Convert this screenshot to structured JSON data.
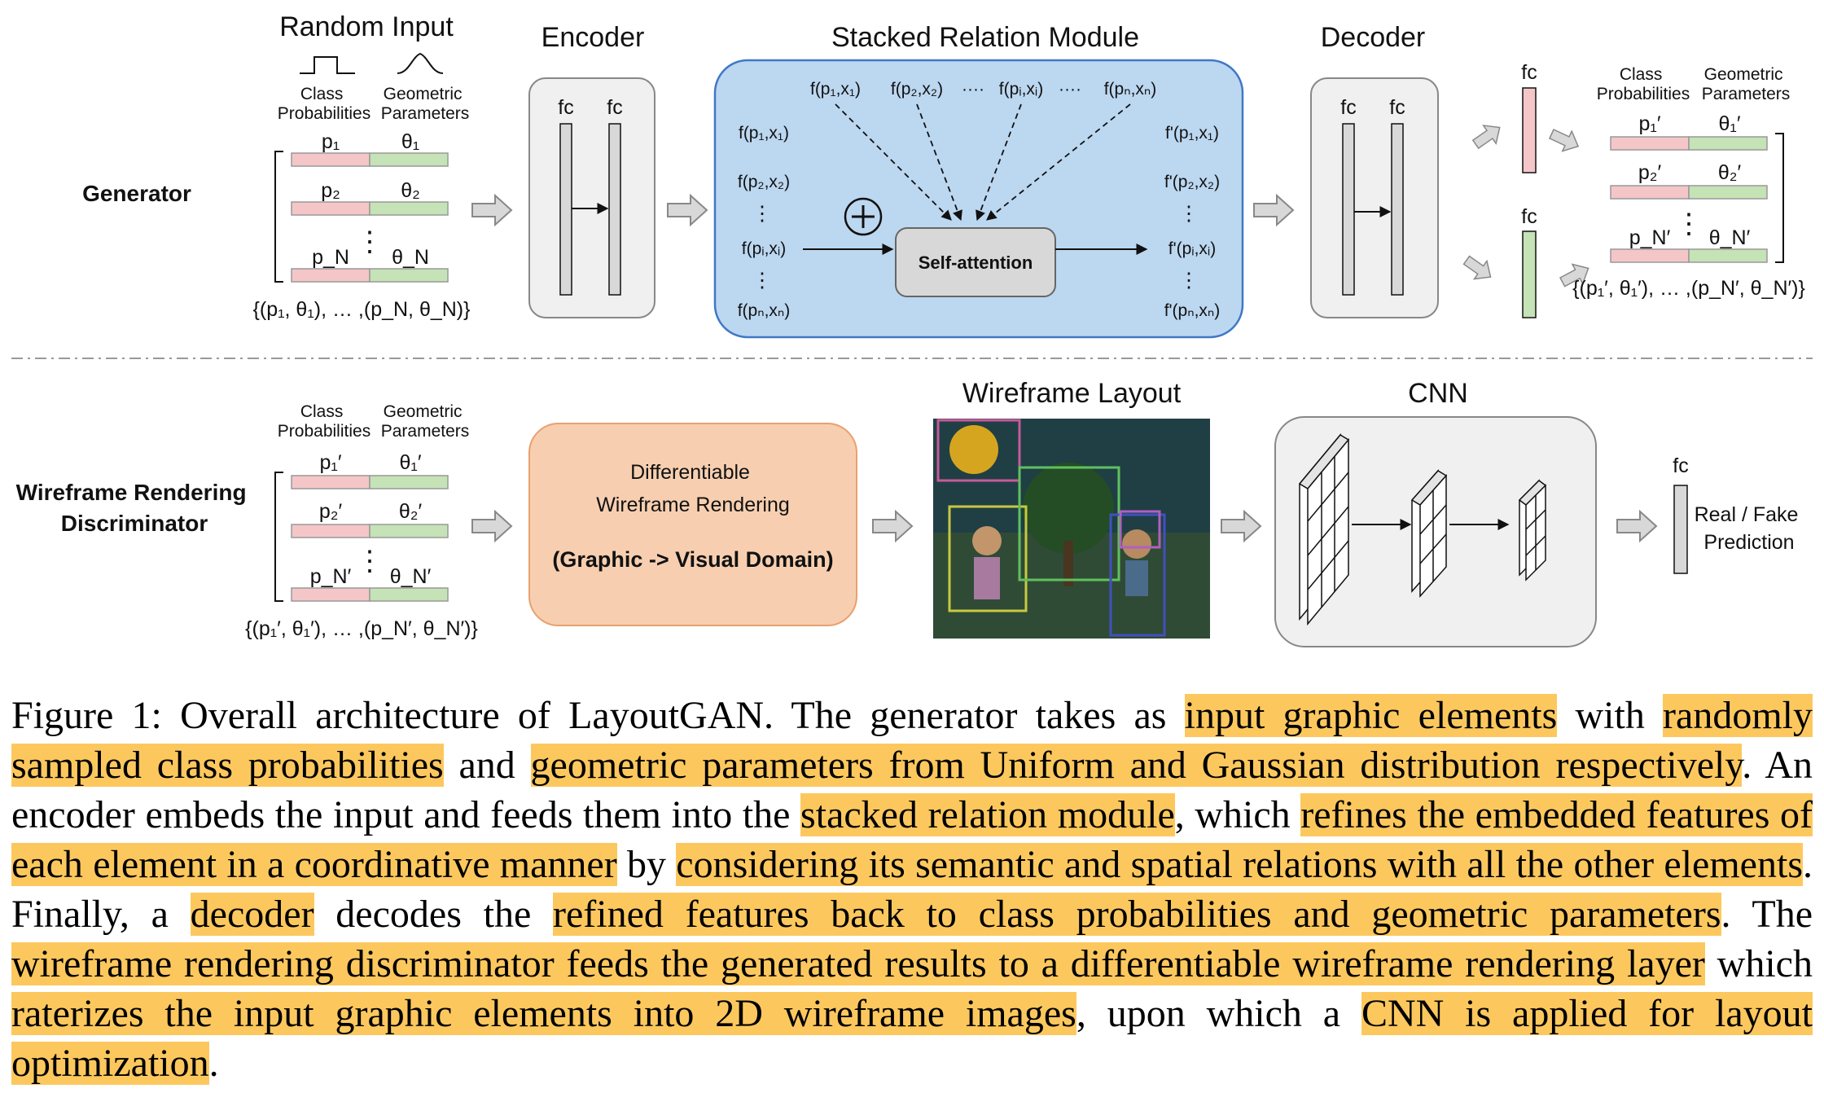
{
  "generator": {
    "row_label": "Generator",
    "random_input_title": "Random Input",
    "class_probabilities_label": [
      "Class",
      "Probabilities"
    ],
    "geometric_parameters_label": [
      "Geometric",
      "Parameters"
    ],
    "input_rows": [
      {
        "p": "p₁",
        "theta": "θ₁"
      },
      {
        "p": "p₂",
        "theta": "θ₂"
      },
      {
        "p": "p_N",
        "theta": "θ_N"
      }
    ],
    "input_set_label": "{(p₁, θ₁), … ,(p_N, θ_N)}",
    "encoder_title": "Encoder",
    "fc_label": "fc",
    "srm_title": "Stacked Relation Module",
    "srm_top_inputs": [
      "f(p₁,x₁)",
      "f(p₂,x₂)",
      "····",
      "f(pᵢ,xᵢ)",
      "····",
      "f(pₙ,xₙ)"
    ],
    "srm_left": [
      "f(p₁,x₁)",
      "f(p₂,x₂)",
      "f(pᵢ,xᵢ)",
      "f(pₙ,xₙ)"
    ],
    "srm_right": [
      "f'(p₁,x₁)",
      "f'(p₂,x₂)",
      "f'(pᵢ,xᵢ)",
      "f'(pₙ,xₙ)"
    ],
    "self_attention_label": "Self-attention",
    "decoder_title": "Decoder",
    "output_rows": [
      {
        "p": "p₁′",
        "theta": "θ₁′"
      },
      {
        "p": "p₂′",
        "theta": "θ₂′"
      },
      {
        "p": "p_N′",
        "theta": "θ_N′"
      }
    ],
    "output_set_label": "{(p₁′, θ₁′), … ,(p_N′, θ_N′)}"
  },
  "discriminator": {
    "row_label": [
      "Wireframe Rendering",
      "Discriminator"
    ],
    "input_rows": [
      {
        "p": "p₁′",
        "theta": "θ₁′"
      },
      {
        "p": "p₂′",
        "theta": "θ₂′"
      },
      {
        "p": "p_N′",
        "theta": "θ_N′"
      }
    ],
    "input_set_label": "{(p₁′, θ₁′), … ,(p_N′, θ_N′)}",
    "rendering_box": [
      "Differentiable",
      "Wireframe Rendering",
      "(Graphic -> Visual Domain)"
    ],
    "wireframe_title": "Wireframe Layout",
    "cnn_title": "CNN",
    "fc_label": "fc",
    "prediction_label": [
      "Real / Fake",
      "Prediction"
    ]
  },
  "colors": {
    "class_bar": "#f4c6c8",
    "geometric_bar": "#c5e3b6",
    "srm_panel": "#bcd7f0",
    "rendering_box": "#f7cfb0",
    "caption_highlight": "#fcc85e"
  },
  "caption": [
    {
      "t": "Figure 1: Overall architecture of LayoutGAN. The generator takes as ",
      "h": false
    },
    {
      "t": "input graphic elements",
      "h": true
    },
    {
      "t": " with ",
      "h": false
    },
    {
      "t": "randomly sampled class probabilities",
      "h": true
    },
    {
      "t": " and ",
      "h": false
    },
    {
      "t": "geometric parameters from Uniform and Gaussian distribution respectively",
      "h": true
    },
    {
      "t": ". An encoder embeds the input and feeds them into the ",
      "h": false
    },
    {
      "t": "stacked relation module",
      "h": true
    },
    {
      "t": ", which ",
      "h": false
    },
    {
      "t": "refines the embedded features of each element in a coordinative manner",
      "h": true
    },
    {
      "t": " by ",
      "h": false
    },
    {
      "t": "considering its semantic and spatial relations with all the other elements",
      "h": true
    },
    {
      "t": ". Finally, a ",
      "h": false
    },
    {
      "t": "decoder",
      "h": true
    },
    {
      "t": " decodes the ",
      "h": false
    },
    {
      "t": "refined features back to class probabilities and geometric parameters",
      "h": true
    },
    {
      "t": ". The ",
      "h": false
    },
    {
      "t": "wireframe rendering discriminator feeds the generated results to a differentiable wireframe rendering layer",
      "h": true
    },
    {
      "t": " which ",
      "h": false
    },
    {
      "t": "raterizes the input graphic elements into 2D wireframe images",
      "h": true
    },
    {
      "t": ", upon which a ",
      "h": false
    },
    {
      "t": "CNN is applied for layout optimization",
      "h": true
    },
    {
      "t": ".",
      "h": false
    }
  ]
}
